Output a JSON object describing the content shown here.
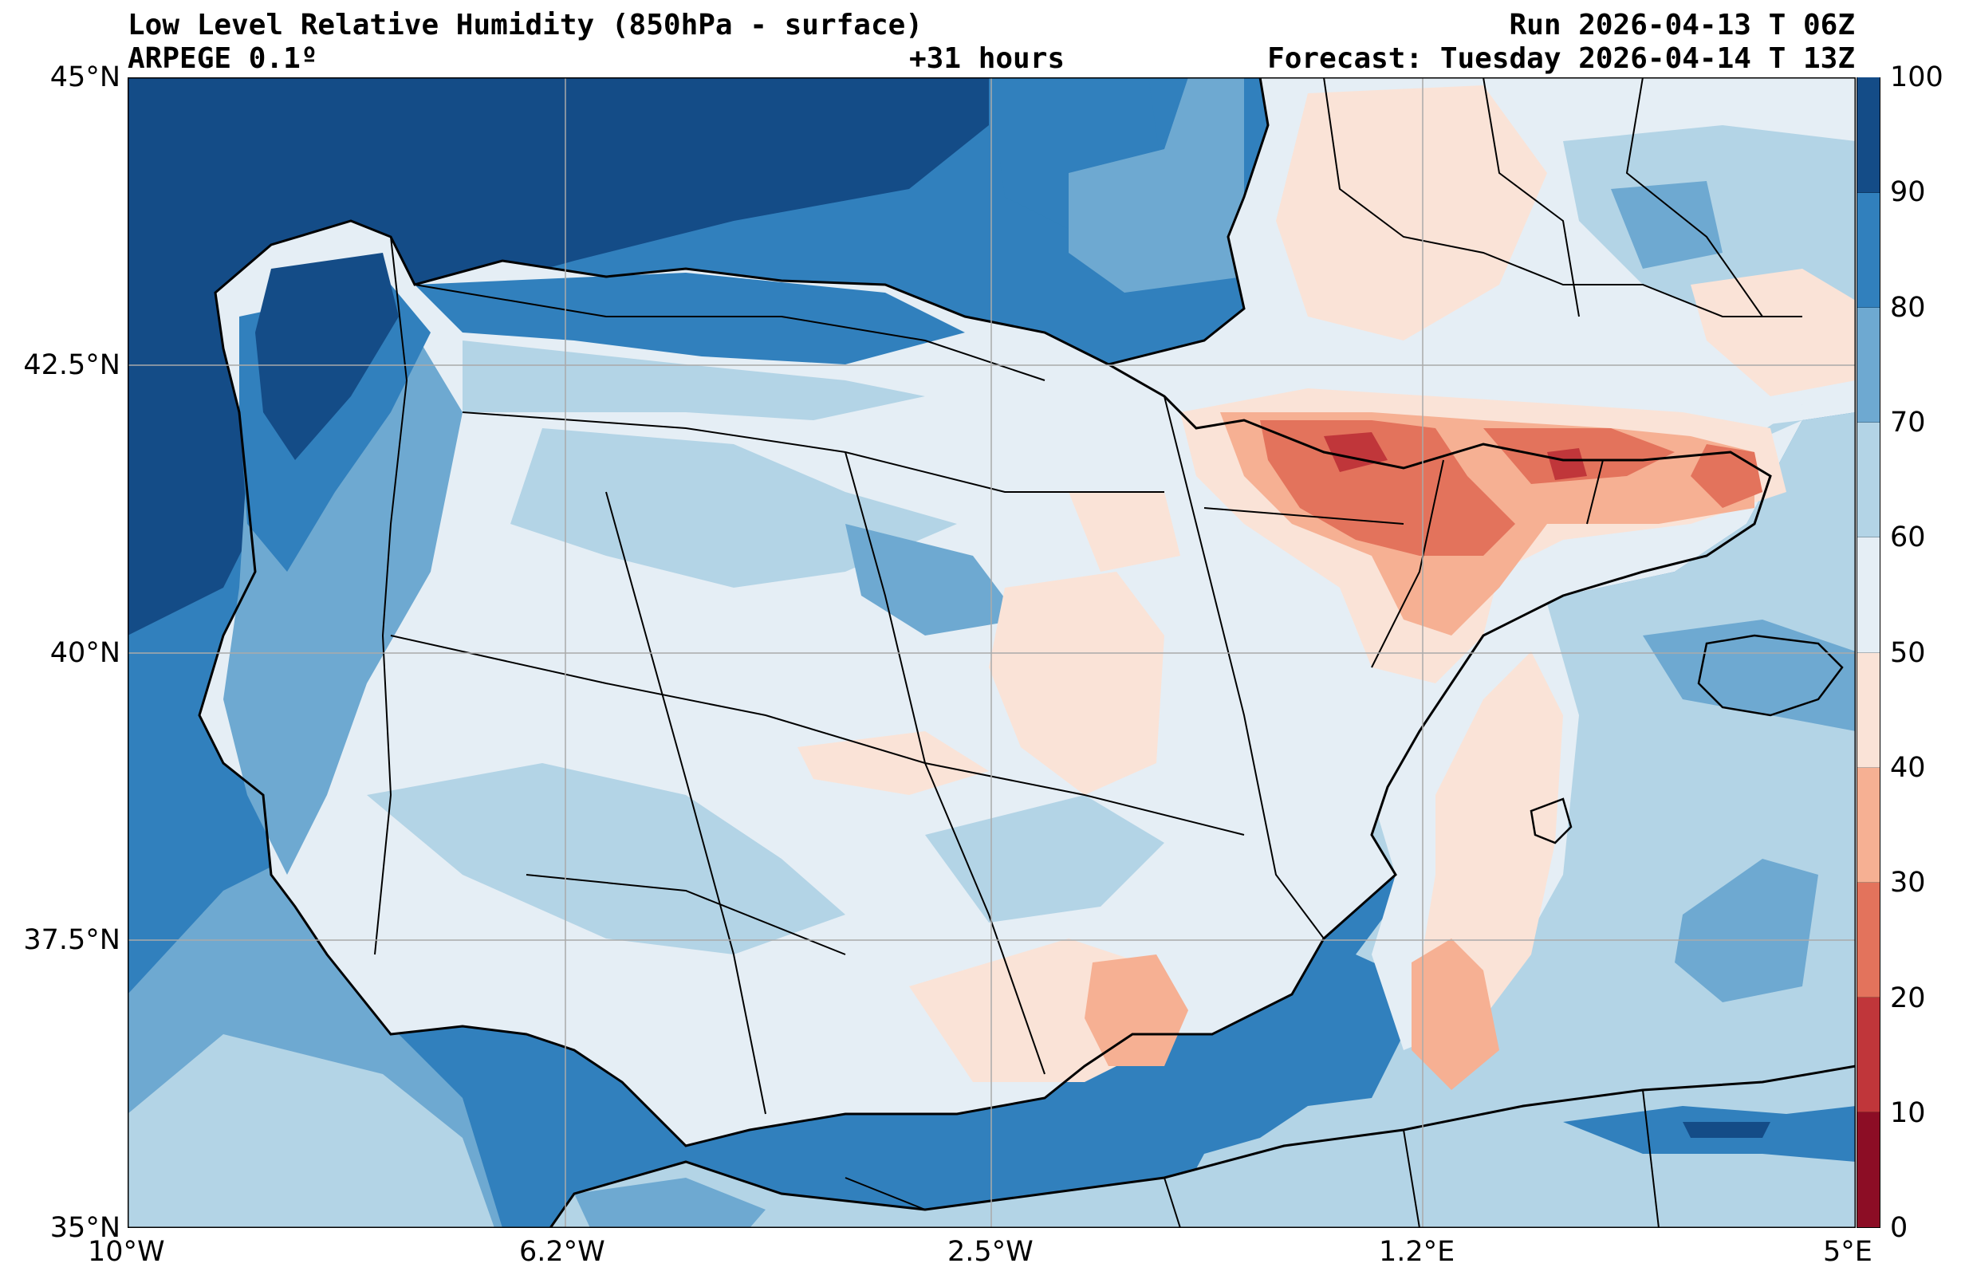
{
  "header": {
    "title": "Low Level Relative Humidity (850hPa - surface)",
    "model": "ARPEGE 0.1º",
    "lead_time": "+31 hours",
    "run": "Run 2026-04-13 T 06Z",
    "forecast": "Forecast: Tuesday 2026-04-14 T 13Z"
  },
  "axes": {
    "lat_labels": [
      "45°N",
      "42.5°N",
      "40°N",
      "37.5°N",
      "35°N"
    ],
    "lon_labels": [
      "10°W",
      "6.2°W",
      "2.5°W",
      "1.2°E",
      "5°E"
    ],
    "lat_range": [
      35,
      45
    ],
    "lon_range": [
      -10,
      5
    ]
  },
  "colorbar": {
    "labels": [
      "0",
      "10",
      "20",
      "30",
      "40",
      "50",
      "60",
      "70",
      "80",
      "90",
      "100"
    ],
    "levels": [
      0,
      10,
      20,
      30,
      40,
      50,
      60,
      70,
      80,
      90,
      100
    ],
    "colors": [
      "#8c0d25",
      "#c0363a",
      "#e3735c",
      "#f6b093",
      "#fae3d7",
      "#e5eef5",
      "#b3d4e6",
      "#6ea9d1",
      "#3180bd",
      "#144c87"
    ]
  },
  "map_colors": {
    "ocean": "#2e7fbb",
    "land_base": "#e5eef5",
    "coast_and_borders": "#000000",
    "grid": "#aaaaaa"
  }
}
